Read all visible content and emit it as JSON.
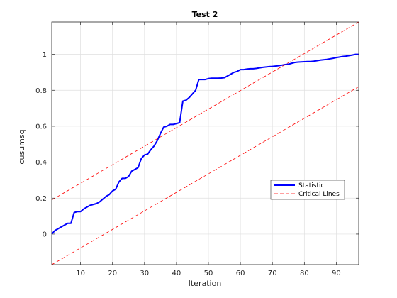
{
  "chart_data": {
    "type": "line",
    "title": "Test 2",
    "xlabel": "Iteration",
    "ylabel": "cusumsq",
    "xlim": [
      1,
      97
    ],
    "ylim": [
      -0.17,
      1.18
    ],
    "xticks": [
      10,
      20,
      30,
      40,
      50,
      60,
      70,
      80,
      90
    ],
    "xtick_labels": [
      "10",
      "20",
      "30",
      "40",
      "50",
      "60",
      "70",
      "80",
      "90"
    ],
    "yticks": [
      0,
      0.2,
      0.4,
      0.6,
      0.8,
      1
    ],
    "ytick_labels": [
      "0",
      "0.2",
      "0.4",
      "0.6",
      "0.8",
      "1"
    ],
    "grid": true,
    "legend_position": "lower-right",
    "series": [
      {
        "name": "Statistic",
        "color": "#0000ff",
        "style": "solid",
        "x": [
          1,
          2,
          3,
          4,
          5,
          6,
          7,
          8,
          9,
          10,
          11,
          12,
          13,
          14,
          15,
          16,
          17,
          18,
          19,
          20,
          21,
          22,
          23,
          24,
          25,
          26,
          27,
          28,
          29,
          30,
          31,
          32,
          33,
          34,
          35,
          36,
          37,
          38,
          39,
          40,
          41,
          42,
          43,
          44,
          45,
          46,
          47,
          48,
          49,
          50,
          51,
          52,
          53,
          54,
          55,
          56,
          57,
          58,
          59,
          60,
          61,
          62,
          63,
          64,
          65,
          66,
          67,
          68,
          69,
          70,
          71,
          72,
          73,
          74,
          75,
          76,
          77,
          78,
          79,
          80,
          81,
          82,
          83,
          84,
          85,
          86,
          87,
          88,
          89,
          90,
          91,
          92,
          93,
          94,
          95,
          96,
          97
        ],
        "y": [
          0.0,
          0.02,
          0.03,
          0.04,
          0.05,
          0.06,
          0.06,
          0.12,
          0.125,
          0.125,
          0.14,
          0.15,
          0.16,
          0.165,
          0.17,
          0.18,
          0.195,
          0.21,
          0.22,
          0.24,
          0.25,
          0.29,
          0.31,
          0.31,
          0.32,
          0.35,
          0.36,
          0.37,
          0.42,
          0.44,
          0.445,
          0.47,
          0.49,
          0.52,
          0.56,
          0.595,
          0.6,
          0.61,
          0.61,
          0.615,
          0.62,
          0.74,
          0.745,
          0.76,
          0.78,
          0.8,
          0.86,
          0.86,
          0.86,
          0.865,
          0.867,
          0.867,
          0.867,
          0.868,
          0.87,
          0.88,
          0.89,
          0.9,
          0.905,
          0.915,
          0.915,
          0.918,
          0.92,
          0.92,
          0.922,
          0.925,
          0.928,
          0.93,
          0.932,
          0.933,
          0.935,
          0.937,
          0.94,
          0.943,
          0.945,
          0.95,
          0.955,
          0.957,
          0.958,
          0.959,
          0.96,
          0.96,
          0.962,
          0.965,
          0.968,
          0.97,
          0.972,
          0.975,
          0.978,
          0.982,
          0.985,
          0.988,
          0.99,
          0.993,
          0.996,
          1.0,
          1.0
        ]
      },
      {
        "name": "Critical Lines",
        "color": "#ff0000",
        "style": "dashed",
        "x": [
          1,
          97
        ],
        "y": [
          0.19,
          1.18
        ]
      },
      {
        "name": "",
        "color": "#ff0000",
        "style": "dashed",
        "x": [
          1,
          97
        ],
        "y": [
          -0.17,
          0.82
        ]
      }
    ],
    "legend": [
      {
        "label": "Statistic",
        "color": "#0000ff",
        "style": "solid"
      },
      {
        "label": "Critical Lines",
        "color": "#ff0000",
        "style": "dashed"
      }
    ]
  }
}
